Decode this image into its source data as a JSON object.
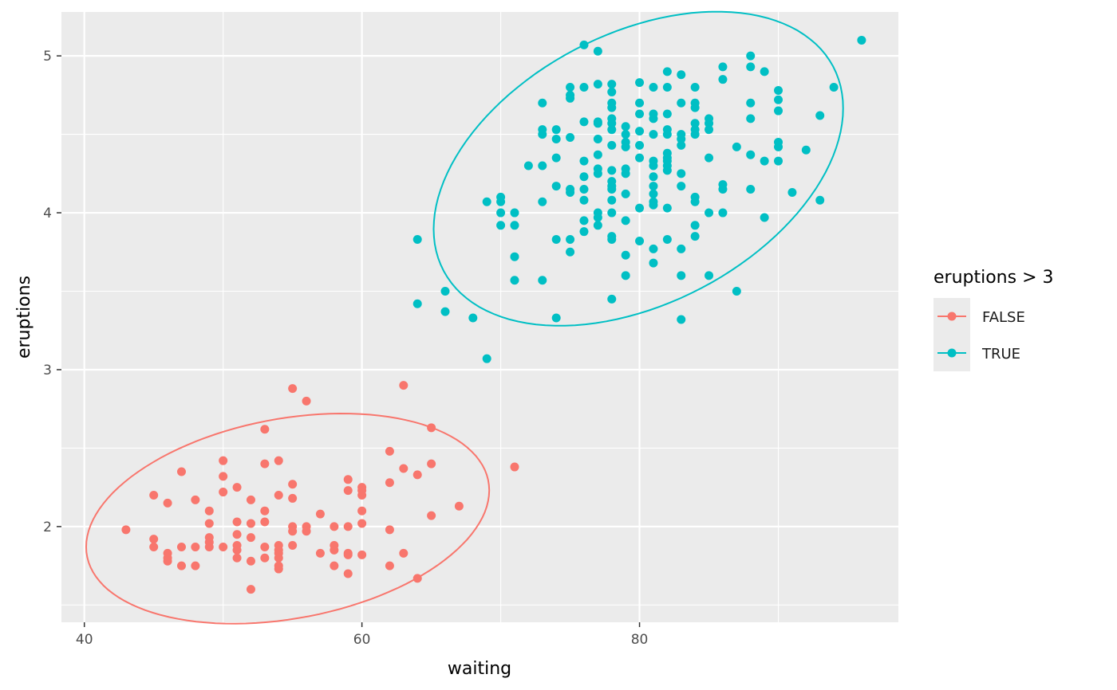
{
  "chart_data": {
    "type": "scatter",
    "title": "",
    "xlabel": "waiting",
    "ylabel": "eruptions",
    "xlim": [
      38.35,
      98.65
    ],
    "ylim": [
      1.39,
      5.28
    ],
    "x_ticks": [
      40,
      60,
      80
    ],
    "x_tick_labels": [
      "40",
      "60",
      "80"
    ],
    "y_ticks": [
      2,
      3,
      4,
      5
    ],
    "y_tick_labels": [
      "2",
      "3",
      "4",
      "5"
    ],
    "grid": true,
    "background": "#ebebeb",
    "legend": {
      "title": "eruptions > 3",
      "position": "right",
      "entries": [
        "FALSE",
        "TRUE"
      ]
    },
    "overlay": "95% normal data ellipse per group",
    "series": [
      {
        "name": "FALSE",
        "color": "#F8766D",
        "points": [
          [
            43,
            1.98
          ],
          [
            45,
            2.2
          ],
          [
            45,
            1.92
          ],
          [
            45,
            1.87
          ],
          [
            46,
            2.15
          ],
          [
            46,
            1.83
          ],
          [
            46,
            1.8
          ],
          [
            46,
            1.78
          ],
          [
            47,
            2.35
          ],
          [
            47,
            1.87
          ],
          [
            47,
            1.75
          ],
          [
            48,
            2.17
          ],
          [
            48,
            1.87
          ],
          [
            48,
            1.75
          ],
          [
            49,
            2.1
          ],
          [
            49,
            2.02
          ],
          [
            49,
            1.93
          ],
          [
            49,
            1.9
          ],
          [
            49,
            1.87
          ],
          [
            50,
            2.42
          ],
          [
            50,
            2.32
          ],
          [
            50,
            2.22
          ],
          [
            50,
            1.87
          ],
          [
            51,
            2.25
          ],
          [
            51,
            2.03
          ],
          [
            51,
            1.95
          ],
          [
            51,
            1.88
          ],
          [
            51,
            1.85
          ],
          [
            51,
            1.8
          ],
          [
            52,
            2.17
          ],
          [
            52,
            2.02
          ],
          [
            52,
            1.93
          ],
          [
            52,
            1.78
          ],
          [
            52,
            1.6
          ],
          [
            53,
            2.62
          ],
          [
            53,
            2.4
          ],
          [
            53,
            2.1
          ],
          [
            53,
            2.03
          ],
          [
            53,
            1.87
          ],
          [
            53,
            1.8
          ],
          [
            54,
            2.42
          ],
          [
            54,
            2.2
          ],
          [
            54,
            1.88
          ],
          [
            54,
            1.85
          ],
          [
            54,
            1.83
          ],
          [
            54,
            1.8
          ],
          [
            54,
            1.75
          ],
          [
            54,
            1.73
          ],
          [
            55,
            2.88
          ],
          [
            55,
            2.27
          ],
          [
            55,
            2.18
          ],
          [
            55,
            2.0
          ],
          [
            55,
            1.97
          ],
          [
            55,
            1.88
          ],
          [
            56,
            2.8
          ],
          [
            56,
            2.0
          ],
          [
            56,
            1.97
          ],
          [
            57,
            2.08
          ],
          [
            57,
            1.83
          ],
          [
            58,
            2.0
          ],
          [
            58,
            1.88
          ],
          [
            58,
            1.85
          ],
          [
            58,
            1.75
          ],
          [
            59,
            2.3
          ],
          [
            59,
            2.23
          ],
          [
            59,
            2.0
          ],
          [
            59,
            1.83
          ],
          [
            59,
            1.82
          ],
          [
            59,
            1.7
          ],
          [
            60,
            2.25
          ],
          [
            60,
            2.23
          ],
          [
            60,
            2.2
          ],
          [
            60,
            2.1
          ],
          [
            60,
            2.02
          ],
          [
            60,
            1.82
          ],
          [
            62,
            2.48
          ],
          [
            62,
            2.28
          ],
          [
            62,
            1.98
          ],
          [
            62,
            1.75
          ],
          [
            63,
            2.9
          ],
          [
            63,
            2.37
          ],
          [
            63,
            1.83
          ],
          [
            64,
            2.33
          ],
          [
            64,
            1.67
          ],
          [
            65,
            2.63
          ],
          [
            65,
            2.4
          ],
          [
            65,
            2.07
          ],
          [
            67,
            2.13
          ],
          [
            71,
            2.38
          ]
        ]
      },
      {
        "name": "TRUE",
        "color": "#00BFC4",
        "points": [
          [
            64,
            3.83
          ],
          [
            64,
            3.42
          ],
          [
            66,
            3.5
          ],
          [
            66,
            3.37
          ],
          [
            68,
            3.33
          ],
          [
            69,
            4.07
          ],
          [
            69,
            3.07
          ],
          [
            70,
            4.1
          ],
          [
            70,
            4.07
          ],
          [
            70,
            4.0
          ],
          [
            70,
            3.92
          ],
          [
            71,
            4.0
          ],
          [
            71,
            3.92
          ],
          [
            71,
            3.72
          ],
          [
            71,
            3.57
          ],
          [
            72,
            4.3
          ],
          [
            73,
            4.7
          ],
          [
            73,
            4.53
          ],
          [
            73,
            4.5
          ],
          [
            73,
            4.3
          ],
          [
            73,
            4.07
          ],
          [
            73,
            3.57
          ],
          [
            74,
            4.53
          ],
          [
            74,
            4.47
          ],
          [
            74,
            4.35
          ],
          [
            74,
            4.17
          ],
          [
            74,
            3.83
          ],
          [
            74,
            3.33
          ],
          [
            75,
            4.8
          ],
          [
            75,
            4.75
          ],
          [
            75,
            4.73
          ],
          [
            75,
            4.48
          ],
          [
            75,
            4.15
          ],
          [
            75,
            4.13
          ],
          [
            75,
            3.83
          ],
          [
            75,
            3.75
          ],
          [
            76,
            5.07
          ],
          [
            76,
            4.8
          ],
          [
            76,
            4.58
          ],
          [
            76,
            4.33
          ],
          [
            76,
            4.23
          ],
          [
            76,
            4.15
          ],
          [
            76,
            4.08
          ],
          [
            76,
            3.95
          ],
          [
            76,
            3.88
          ],
          [
            77,
            5.03
          ],
          [
            77,
            4.82
          ],
          [
            77,
            4.58
          ],
          [
            77,
            4.57
          ],
          [
            77,
            4.47
          ],
          [
            77,
            4.37
          ],
          [
            77,
            4.28
          ],
          [
            77,
            4.25
          ],
          [
            77,
            4.0
          ],
          [
            77,
            3.97
          ],
          [
            77,
            3.92
          ],
          [
            78,
            4.82
          ],
          [
            78,
            4.77
          ],
          [
            78,
            4.7
          ],
          [
            78,
            4.67
          ],
          [
            78,
            4.6
          ],
          [
            78,
            4.57
          ],
          [
            78,
            4.53
          ],
          [
            78,
            4.43
          ],
          [
            78,
            4.27
          ],
          [
            78,
            4.2
          ],
          [
            78,
            4.17
          ],
          [
            78,
            4.15
          ],
          [
            78,
            4.08
          ],
          [
            78,
            4.0
          ],
          [
            78,
            3.85
          ],
          [
            78,
            3.83
          ],
          [
            78,
            3.45
          ],
          [
            79,
            4.55
          ],
          [
            79,
            4.5
          ],
          [
            79,
            4.45
          ],
          [
            79,
            4.42
          ],
          [
            79,
            4.28
          ],
          [
            79,
            4.25
          ],
          [
            79,
            4.12
          ],
          [
            79,
            3.95
          ],
          [
            79,
            3.73
          ],
          [
            79,
            3.6
          ],
          [
            80,
            4.83
          ],
          [
            80,
            4.7
          ],
          [
            80,
            4.63
          ],
          [
            80,
            4.52
          ],
          [
            80,
            4.43
          ],
          [
            80,
            4.35
          ],
          [
            80,
            4.03
          ],
          [
            80,
            3.82
          ],
          [
            81,
            4.8
          ],
          [
            81,
            4.63
          ],
          [
            81,
            4.6
          ],
          [
            81,
            4.5
          ],
          [
            81,
            4.33
          ],
          [
            81,
            4.3
          ],
          [
            81,
            4.23
          ],
          [
            81,
            4.17
          ],
          [
            81,
            4.12
          ],
          [
            81,
            4.07
          ],
          [
            81,
            4.05
          ],
          [
            81,
            3.77
          ],
          [
            81,
            3.68
          ],
          [
            82,
            4.9
          ],
          [
            82,
            4.8
          ],
          [
            82,
            4.63
          ],
          [
            82,
            4.53
          ],
          [
            82,
            4.5
          ],
          [
            82,
            4.38
          ],
          [
            82,
            4.35
          ],
          [
            82,
            4.33
          ],
          [
            82,
            4.3
          ],
          [
            82,
            4.27
          ],
          [
            82,
            4.03
          ],
          [
            82,
            3.83
          ],
          [
            83,
            4.88
          ],
          [
            83,
            4.7
          ],
          [
            83,
            4.5
          ],
          [
            83,
            4.47
          ],
          [
            83,
            4.43
          ],
          [
            83,
            4.25
          ],
          [
            83,
            4.17
          ],
          [
            83,
            3.77
          ],
          [
            83,
            3.6
          ],
          [
            83,
            3.32
          ],
          [
            84,
            4.8
          ],
          [
            84,
            4.7
          ],
          [
            84,
            4.67
          ],
          [
            84,
            4.57
          ],
          [
            84,
            4.53
          ],
          [
            84,
            4.5
          ],
          [
            84,
            4.1
          ],
          [
            84,
            4.07
          ],
          [
            84,
            3.92
          ],
          [
            84,
            3.85
          ],
          [
            85,
            4.6
          ],
          [
            85,
            4.57
          ],
          [
            85,
            4.53
          ],
          [
            85,
            4.35
          ],
          [
            85,
            4.0
          ],
          [
            85,
            3.6
          ],
          [
            86,
            4.93
          ],
          [
            86,
            4.85
          ],
          [
            86,
            4.18
          ],
          [
            86,
            4.15
          ],
          [
            86,
            4.0
          ],
          [
            87,
            4.42
          ],
          [
            87,
            3.5
          ],
          [
            88,
            5.0
          ],
          [
            88,
            4.93
          ],
          [
            88,
            4.7
          ],
          [
            88,
            4.6
          ],
          [
            88,
            4.37
          ],
          [
            88,
            4.15
          ],
          [
            89,
            4.9
          ],
          [
            89,
            4.33
          ],
          [
            89,
            3.97
          ],
          [
            90,
            4.78
          ],
          [
            90,
            4.72
          ],
          [
            90,
            4.65
          ],
          [
            90,
            4.45
          ],
          [
            90,
            4.42
          ],
          [
            90,
            4.33
          ],
          [
            91,
            4.13
          ],
          [
            92,
            4.4
          ],
          [
            93,
            4.62
          ],
          [
            93,
            4.08
          ],
          [
            94,
            4.8
          ],
          [
            96,
            5.1
          ]
        ]
      }
    ]
  }
}
